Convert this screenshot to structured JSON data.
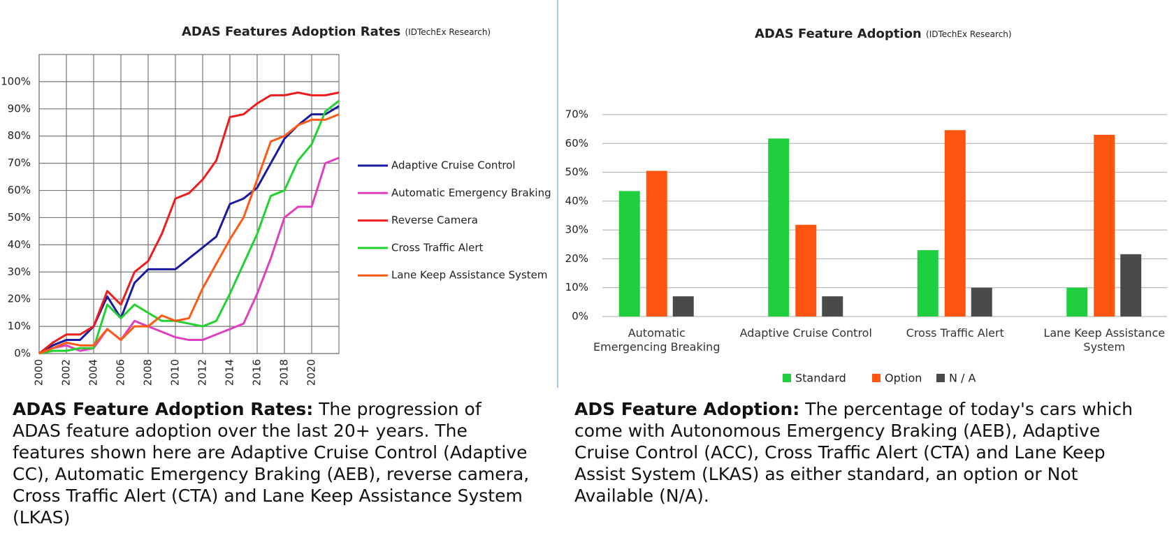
{
  "chart_data": [
    {
      "type": "line",
      "title": "ADAS Features Adoption Rates",
      "subtitle": "(IDTechEx Research)",
      "x": [
        2000,
        2001,
        2002,
        2003,
        2004,
        2005,
        2006,
        2007,
        2008,
        2009,
        2010,
        2011,
        2012,
        2013,
        2014,
        2015,
        2016,
        2017,
        2018,
        2019,
        2020,
        2021,
        2022
      ],
      "xlim": [
        2000,
        2022
      ],
      "xticks": [
        2000,
        2002,
        2004,
        2006,
        2008,
        2010,
        2012,
        2014,
        2016,
        2018,
        2020
      ],
      "ylim": [
        0,
        110
      ],
      "yticks": [
        {
          "value": 0,
          "label": "0%"
        },
        {
          "value": 10,
          "label": "10%"
        },
        {
          "value": 20,
          "label": "20%"
        },
        {
          "value": 30,
          "label": "30%"
        },
        {
          "value": 40,
          "label": "40%"
        },
        {
          "value": 50,
          "label": "50%"
        },
        {
          "value": 60,
          "label": "60%"
        },
        {
          "value": 70,
          "label": "70%"
        },
        {
          "value": 80,
          "label": "80%"
        },
        {
          "value": 90,
          "label": "90%"
        },
        {
          "value": 100,
          "label": "100%"
        }
      ],
      "grid": true,
      "series": [
        {
          "name": "Adaptive Cruise Control",
          "color": "#1a1aa0",
          "values": [
            0,
            3,
            5,
            5,
            10,
            21,
            13,
            26,
            31,
            31,
            31,
            35,
            39,
            43,
            55,
            57,
            61,
            70,
            79,
            84,
            88,
            88,
            91
          ]
        },
        {
          "name": "Automatic Emergency Braking",
          "color": "#e040c0",
          "values": [
            0,
            2,
            3,
            1,
            2,
            9,
            5,
            12,
            10,
            8,
            6,
            5,
            5,
            7,
            9,
            11,
            22,
            35,
            50,
            54,
            54,
            70,
            72
          ]
        },
        {
          "name": "Reverse Camera",
          "color": "#ee1c1c",
          "values": [
            0,
            4,
            7,
            7,
            10,
            23,
            18,
            30,
            34,
            44,
            57,
            59,
            64,
            71,
            87,
            88,
            92,
            95,
            95,
            96,
            95,
            95,
            96
          ]
        },
        {
          "name": "Cross Traffic Alert",
          "color": "#22d22e",
          "values": [
            0,
            1,
            1,
            2,
            2,
            18,
            13,
            18,
            15,
            12,
            12,
            11,
            10,
            12,
            22,
            33,
            44,
            58,
            60,
            71,
            77,
            89,
            93
          ]
        },
        {
          "name": "Lane Keep Assistance System",
          "color": "#ff5a14",
          "values": [
            0,
            2,
            4,
            3,
            3,
            9,
            5,
            10,
            10,
            14,
            12,
            13,
            24,
            33,
            42,
            50,
            64,
            78,
            80,
            84,
            86,
            86,
            88
          ]
        }
      ]
    },
    {
      "type": "bar",
      "title": "ADAS Feature Adoption",
      "subtitle": "(IDTechEx Research)",
      "categories": [
        "Automatic Emergencing Breaking",
        "Adaptive Cruise Control",
        "Cross Traffic Alert",
        "Lane Keep Assistance System"
      ],
      "ylim": [
        0,
        70
      ],
      "yticks": [
        {
          "value": 0,
          "label": "0%"
        },
        {
          "value": 10,
          "label": "10%"
        },
        {
          "value": 20,
          "label": "20%"
        },
        {
          "value": 30,
          "label": "30%"
        },
        {
          "value": 40,
          "label": "40%"
        },
        {
          "value": 50,
          "label": "50%"
        },
        {
          "value": 60,
          "label": "60%"
        },
        {
          "value": 70,
          "label": "70%"
        }
      ],
      "grid": true,
      "series": [
        {
          "name": "Standard",
          "color": "#1fcf3f",
          "values": [
            43.5,
            61.7,
            23,
            10
          ]
        },
        {
          "name": "Option",
          "color": "#ff5511",
          "values": [
            50.5,
            31.8,
            64.6,
            63
          ]
        },
        {
          "name": "N / A",
          "color": "#4a4a4a",
          "values": [
            7,
            7,
            10,
            21.6
          ]
        }
      ]
    }
  ],
  "captions": [
    {
      "heading": "ADAS Feature Adoption Rates:",
      "text": "The progression of ADAS feature adoption over the last 20+ years. The features shown here are Adaptive Cruise Control (Adaptive CC), Automatic Emergency Braking (AEB), reverse camera, Cross Traffic Alert (CTA) and Lane Keep Assistance System (LKAS)"
    },
    {
      "heading": "ADS Feature Adoption:",
      "text": "The percentage of today's cars which come with Autonomous Emergency Braking (AEB), Adaptive Cruise Control (ACC), Cross Traffic Alert (CTA) and Lane Keep Assist System (LKAS) as either standard, an option or Not Available (N/A)."
    }
  ]
}
